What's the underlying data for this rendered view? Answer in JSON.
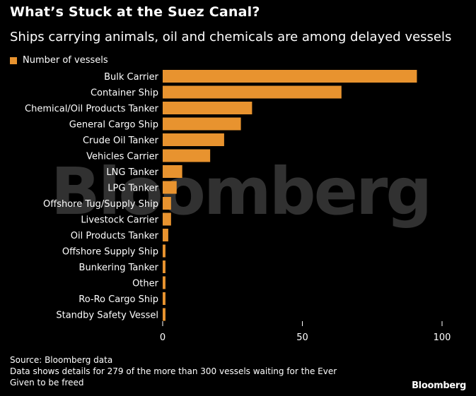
{
  "header": {
    "title": "What’s Stuck at the Suez Canal?",
    "subtitle": "Ships carrying animals, oil and chemicals are among delayed vessels"
  },
  "legend": {
    "label": "Number of vessels",
    "color": "#e8932f"
  },
  "footer": {
    "source": "Source: Bloomberg data",
    "note_line1": "Data shows details for 279 of the more than 300 vessels waiting for the Ever",
    "note_line2": "Given to be freed"
  },
  "brand": "Bloomberg",
  "watermark": "Bloomberg",
  "chart_data": {
    "type": "bar",
    "orientation": "horizontal",
    "categories": [
      "Bulk Carrier",
      "Container Ship",
      "Chemical/Oil Products Tanker",
      "General Cargo Ship",
      "Crude Oil Tanker",
      "Vehicles Carrier",
      "LNG Tanker",
      "LPG Tanker",
      "Offshore Tug/Supply Ship",
      "Livestock Carrier",
      "Oil Products Tanker",
      "Offshore Supply Ship",
      "Bunkering Tanker",
      "Other",
      "Ro-Ro Cargo Ship",
      "Standby Safety Vessel"
    ],
    "series": [
      {
        "name": "Number of vessels",
        "values": [
          91,
          64,
          32,
          28,
          22,
          17,
          7,
          5,
          3,
          3,
          2,
          1,
          1,
          1,
          1,
          1
        ]
      }
    ],
    "xlim": [
      0,
      100
    ],
    "xticks": [
      0,
      50,
      100
    ],
    "grid": false,
    "legend_position": "top-left",
    "bar_color": "#e8932f"
  }
}
